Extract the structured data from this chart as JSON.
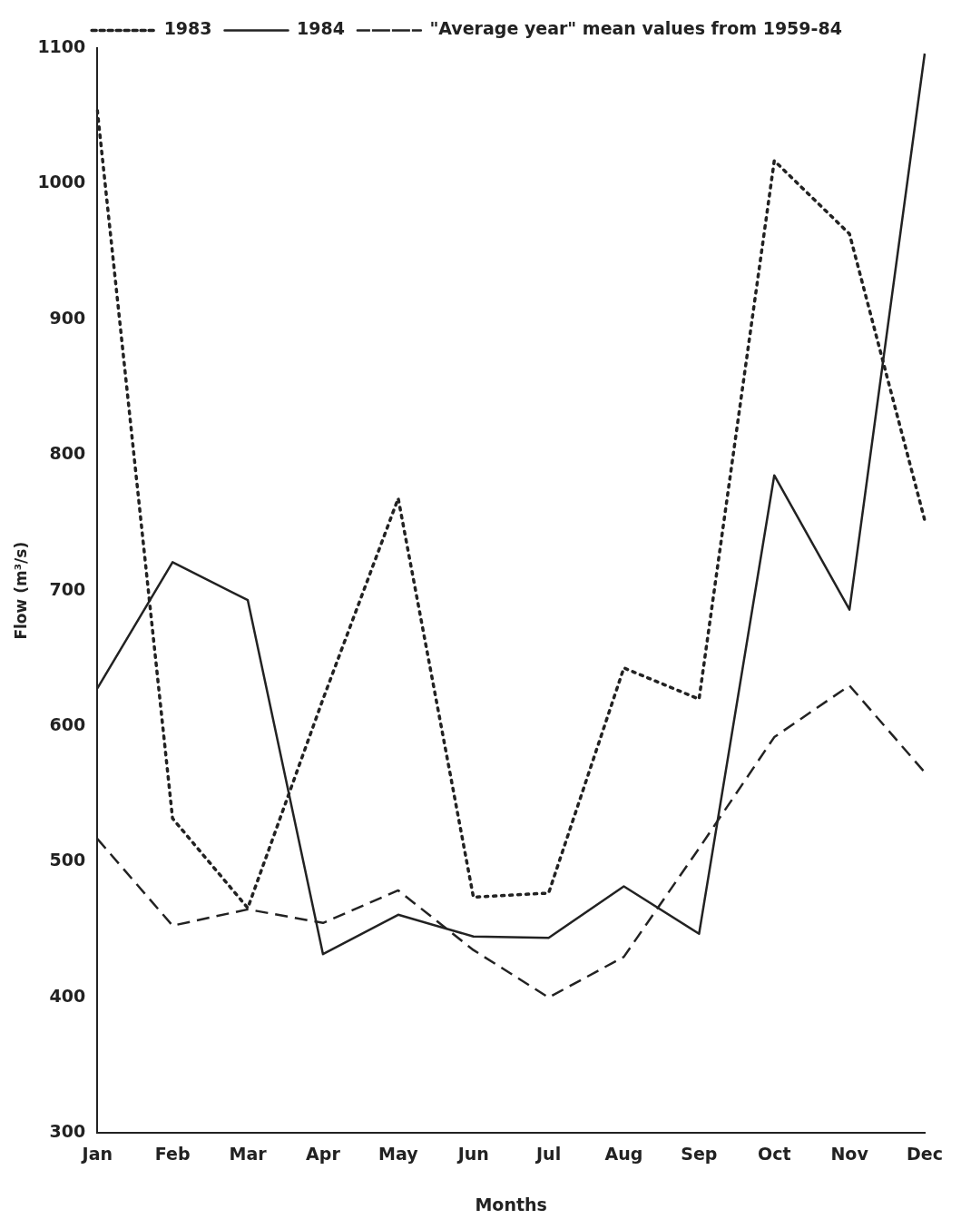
{
  "chart_data": {
    "type": "line",
    "xlabel": "Months",
    "ylabel": "Flow (m³/s)",
    "categories": [
      "Jan",
      "Feb",
      "Mar",
      "Apr",
      "May",
      "Jun",
      "Jul",
      "Aug",
      "Sep",
      "Oct",
      "Nov",
      "Dec"
    ],
    "ylim": [
      300,
      1100
    ],
    "yticks": [
      300,
      400,
      500,
      600,
      700,
      800,
      900,
      1000,
      1100
    ],
    "grid": false,
    "legend": "top",
    "marker": "none",
    "series": [
      {
        "name": "1983",
        "color": "#222222",
        "line_style": "dotted",
        "values": [
          1054,
          532,
          466,
          620,
          768,
          474,
          477,
          643,
          620,
          1017,
          963,
          752
        ]
      },
      {
        "name": "1984",
        "color": "#222222",
        "line_style": "solid",
        "values": [
          628,
          721,
          693,
          432,
          461,
          445,
          444,
          482,
          447,
          785,
          686,
          1096
        ]
      },
      {
        "name": "\"Average year\" mean values from 1959-84",
        "color": "#222222",
        "line_style": "dashed",
        "values": [
          517,
          453,
          465,
          455,
          479,
          435,
          400,
          430,
          510,
          592,
          630,
          566
        ]
      }
    ]
  }
}
